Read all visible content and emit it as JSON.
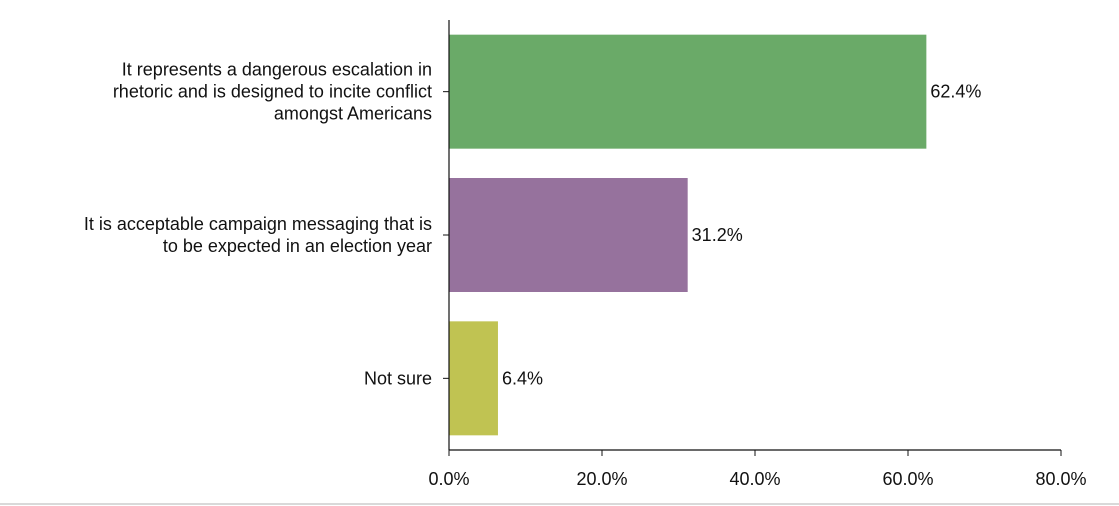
{
  "chart_data": {
    "type": "bar",
    "orientation": "horizontal",
    "title": "",
    "xlabel": "",
    "ylabel": "",
    "categories": [
      [
        "It represents a dangerous escalation in",
        "rhetoric and is designed to incite conflict",
        "amongst Americans"
      ],
      [
        "It is acceptable campaign messaging that is",
        "to be expected in an election year"
      ],
      [
        "Not sure"
      ]
    ],
    "values": [
      62.4,
      31.2,
      6.4
    ],
    "value_labels": [
      "62.4%",
      "31.2%",
      "6.4%"
    ],
    "colors": [
      "#6aaa68",
      "#96729d",
      "#c0c352"
    ],
    "xlim": [
      0,
      80
    ],
    "xticks": [
      0,
      20,
      40,
      60,
      80
    ],
    "xtick_labels": [
      "0.0%",
      "20.0%",
      "40.0%",
      "60.0%",
      "80.0%"
    ],
    "grid": false,
    "legend": "none"
  }
}
